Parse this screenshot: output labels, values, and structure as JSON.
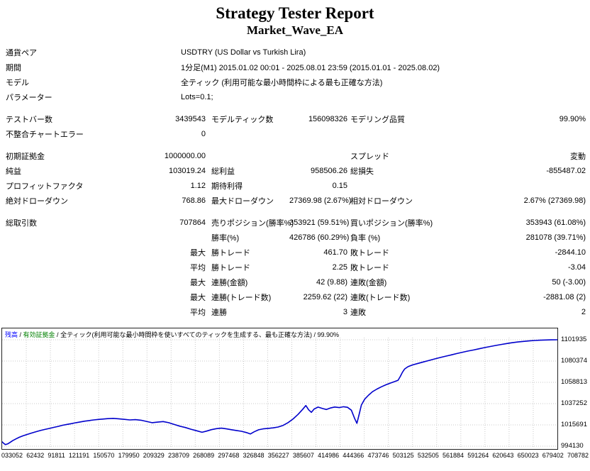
{
  "page": {
    "title": "Strategy Tester Report",
    "subtitle": "Market_Wave_EA"
  },
  "report": {
    "rows": [
      {
        "type": "wide",
        "label": "通貨ペア",
        "value": "USDTRY (US Dollar vs Turkish Lira)"
      },
      {
        "type": "wide",
        "label": "期間",
        "value": "1分足(M1) 2015.01.02 00:01 - 2025.08.01 23:59 (2015.01.01 - 2025.08.02)"
      },
      {
        "type": "wide",
        "label": "モデル",
        "value": "全ティック (利用可能な最小時間枠による最も正確な方法)"
      },
      {
        "type": "wide",
        "label": "パラメーター",
        "value": "Lots=0.1;"
      },
      {
        "type": "gap"
      },
      {
        "type": "cells",
        "cells": [
          "テストバー数",
          "3439543",
          "モデルティック数",
          "156098326",
          "モデリング品質",
          "99.90%"
        ]
      },
      {
        "type": "cells",
        "cells": [
          "不整合チャートエラー",
          "0",
          "",
          "",
          "",
          ""
        ]
      },
      {
        "type": "gap"
      },
      {
        "type": "cells",
        "cells": [
          "初期証拠金",
          "1000000.00",
          "",
          "",
          "スプレッド",
          "変動"
        ]
      },
      {
        "type": "cells",
        "cells": [
          "純益",
          "103019.24",
          "総利益",
          "958506.26",
          "総損失",
          "-855487.02"
        ]
      },
      {
        "type": "cells",
        "cells": [
          "プロフィットファクタ",
          "1.12",
          "期待利得",
          "0.15",
          "",
          ""
        ]
      },
      {
        "type": "cells",
        "cells": [
          "絶対ドローダウン",
          "768.86",
          "最大ドローダウン",
          "27369.98 (2.67%)",
          "相対ドローダウン",
          "2.67% (27369.98)"
        ]
      },
      {
        "type": "gap"
      },
      {
        "type": "cells",
        "cells": [
          "総取引数",
          "707864",
          "売りポジション(勝率%)",
          "353921 (59.51%)",
          "買いポジション(勝率%)",
          "353943 (61.08%)"
        ]
      },
      {
        "type": "cells",
        "cells": [
          "",
          "",
          "勝率(%)",
          "426786 (60.29%)",
          "負率 (%)",
          "281078 (39.71%)"
        ]
      },
      {
        "type": "cells",
        "cells": [
          "",
          "最大",
          "勝トレード",
          "461.70",
          "敗トレード",
          "-2844.10"
        ]
      },
      {
        "type": "cells",
        "cells": [
          "",
          "平均",
          "勝トレード",
          "2.25",
          "敗トレード",
          "-3.04"
        ]
      },
      {
        "type": "cells",
        "cells": [
          "",
          "最大",
          "連勝(金額)",
          "42 (9.88)",
          "連敗(金額)",
          "50 (-3.00)"
        ]
      },
      {
        "type": "cells",
        "cells": [
          "",
          "最大",
          "連勝(トレード数)",
          "2259.62 (22)",
          "連敗(トレード数)",
          "-2881.08 (2)"
        ]
      },
      {
        "type": "cells",
        "cells": [
          "",
          "平均",
          "連勝",
          "3",
          "連敗",
          "2"
        ]
      }
    ]
  },
  "chart_data": {
    "type": "line",
    "legend": {
      "balance_label": "残高",
      "equity_label": "有効証拠金",
      "model_label": "全ティック(利用可能な最小時間枠を使いすべてのティックを生成する、最も正確な方法)",
      "quality_label": "99.90%",
      "separator": " / ",
      "balance_color": "#0000ff",
      "equity_color": "#008000"
    },
    "y_min": 994130,
    "y_max": 1101935,
    "y_ticks": [
      1101935,
      1080374,
      1058813,
      1037252,
      1015691,
      994130
    ],
    "x_ticks": [
      "033052",
      "62432",
      "91811",
      "121191",
      "150570",
      "179950",
      "209329",
      "238709",
      "268089",
      "297468",
      "326848",
      "356227",
      "385607",
      "414986",
      "444366",
      "473746",
      "503125",
      "532505",
      "561884",
      "591264",
      "620643",
      "650023",
      "679402",
      "708782"
    ],
    "grid_color": "#c8c8c8",
    "series": [
      {
        "name": "残高",
        "color": "#0000cc",
        "points": [
          [
            0.0,
            998500
          ],
          [
            0.003,
            996900
          ],
          [
            0.006,
            995700
          ],
          [
            0.01,
            996400
          ],
          [
            0.014,
            997900
          ],
          [
            0.019,
            999700
          ],
          [
            0.025,
            1001500
          ],
          [
            0.031,
            1003200
          ],
          [
            0.038,
            1004700
          ],
          [
            0.045,
            1006000
          ],
          [
            0.053,
            1007400
          ],
          [
            0.061,
            1008800
          ],
          [
            0.069,
            1010000
          ],
          [
            0.077,
            1011100
          ],
          [
            0.085,
            1012100
          ],
          [
            0.093,
            1013200
          ],
          [
            0.101,
            1014200
          ],
          [
            0.109,
            1015300
          ],
          [
            0.117,
            1016200
          ],
          [
            0.125,
            1017000
          ],
          [
            0.133,
            1017900
          ],
          [
            0.141,
            1018700
          ],
          [
            0.149,
            1019500
          ],
          [
            0.157,
            1020100
          ],
          [
            0.165,
            1020700
          ],
          [
            0.173,
            1021200
          ],
          [
            0.181,
            1021600
          ],
          [
            0.19,
            1022000
          ],
          [
            0.2,
            1022300
          ],
          [
            0.21,
            1021900
          ],
          [
            0.22,
            1021300
          ],
          [
            0.23,
            1020700
          ],
          [
            0.24,
            1021000
          ],
          [
            0.25,
            1020400
          ],
          [
            0.26,
            1019200
          ],
          [
            0.27,
            1017900
          ],
          [
            0.28,
            1018500
          ],
          [
            0.29,
            1019100
          ],
          [
            0.3,
            1017900
          ],
          [
            0.31,
            1016100
          ],
          [
            0.32,
            1014400
          ],
          [
            0.33,
            1013000
          ],
          [
            0.34,
            1011300
          ],
          [
            0.35,
            1009800
          ],
          [
            0.36,
            1008200
          ],
          [
            0.368,
            1009400
          ],
          [
            0.377,
            1010900
          ],
          [
            0.386,
            1011900
          ],
          [
            0.395,
            1012400
          ],
          [
            0.404,
            1011700
          ],
          [
            0.413,
            1010800
          ],
          [
            0.422,
            1010000
          ],
          [
            0.431,
            1009200
          ],
          [
            0.44,
            1007900
          ],
          [
            0.447,
            1006500
          ],
          [
            0.454,
            1008700
          ],
          [
            0.462,
            1010700
          ],
          [
            0.47,
            1011700
          ],
          [
            0.479,
            1012200
          ],
          [
            0.488,
            1012700
          ],
          [
            0.497,
            1013500
          ],
          [
            0.506,
            1015200
          ],
          [
            0.515,
            1018000
          ],
          [
            0.524,
            1021700
          ],
          [
            0.533,
            1026300
          ],
          [
            0.541,
            1031300
          ],
          [
            0.547,
            1035300
          ],
          [
            0.552,
            1031000
          ],
          [
            0.557,
            1028400
          ],
          [
            0.562,
            1031800
          ],
          [
            0.569,
            1033700
          ],
          [
            0.577,
            1032300
          ],
          [
            0.584,
            1031300
          ],
          [
            0.591,
            1032800
          ],
          [
            0.599,
            1033800
          ],
          [
            0.607,
            1033200
          ],
          [
            0.615,
            1034100
          ],
          [
            0.622,
            1033500
          ],
          [
            0.629,
            1030600
          ],
          [
            0.635,
            1022000
          ],
          [
            0.639,
            1017300
          ],
          [
            0.643,
            1026500
          ],
          [
            0.647,
            1035800
          ],
          [
            0.653,
            1041800
          ],
          [
            0.66,
            1045900
          ],
          [
            0.667,
            1049300
          ],
          [
            0.675,
            1052000
          ],
          [
            0.683,
            1054300
          ],
          [
            0.691,
            1056300
          ],
          [
            0.699,
            1058000
          ],
          [
            0.707,
            1059600
          ],
          [
            0.713,
            1060900
          ],
          [
            0.717,
            1064600
          ],
          [
            0.721,
            1069000
          ],
          [
            0.725,
            1072400
          ],
          [
            0.731,
            1074700
          ],
          [
            0.739,
            1076400
          ],
          [
            0.749,
            1078000
          ],
          [
            0.759,
            1079500
          ],
          [
            0.769,
            1081000
          ],
          [
            0.779,
            1082500
          ],
          [
            0.789,
            1084000
          ],
          [
            0.799,
            1085300
          ],
          [
            0.809,
            1086600
          ],
          [
            0.819,
            1088000
          ],
          [
            0.829,
            1089300
          ],
          [
            0.839,
            1090500
          ],
          [
            0.849,
            1091600
          ],
          [
            0.859,
            1092800
          ],
          [
            0.869,
            1094000
          ],
          [
            0.879,
            1095100
          ],
          [
            0.889,
            1096200
          ],
          [
            0.899,
            1097200
          ],
          [
            0.909,
            1098100
          ],
          [
            0.919,
            1099000
          ],
          [
            0.929,
            1099700
          ],
          [
            0.939,
            1100300
          ],
          [
            0.949,
            1100800
          ],
          [
            0.959,
            1101200
          ],
          [
            0.969,
            1101500
          ],
          [
            0.979,
            1101750
          ],
          [
            0.989,
            1101870
          ],
          [
            1.0,
            1101935
          ]
        ]
      }
    ]
  }
}
